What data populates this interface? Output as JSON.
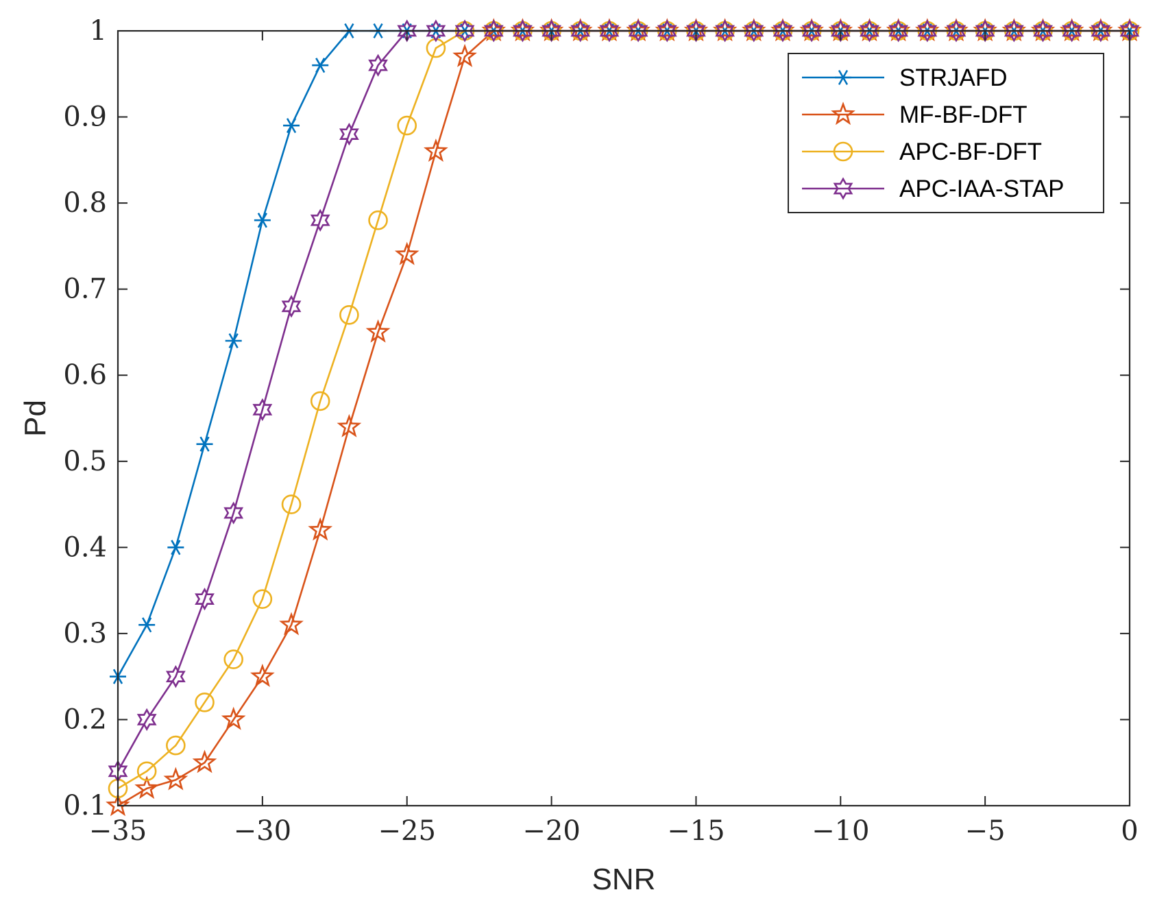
{
  "chart_data": {
    "type": "line",
    "title": "",
    "xlabel": "SNR",
    "ylabel": "Pd",
    "xlim": [
      -35,
      0
    ],
    "ylim": [
      0.1,
      1
    ],
    "grid": false,
    "legend_position": "top-right",
    "x": [
      -35,
      -34,
      -33,
      -32,
      -31,
      -30,
      -29,
      -28,
      -27,
      -26,
      -25,
      -24,
      -23,
      -22,
      -21,
      -20,
      -19,
      -18,
      -17,
      -16,
      -15,
      -14,
      -13,
      -12,
      -11,
      -10,
      -9,
      -8,
      -7,
      -6,
      -5,
      -4,
      -3,
      -2,
      -1,
      0
    ],
    "x_ticks": [
      -35,
      -30,
      -25,
      -20,
      -15,
      -10,
      -5,
      0
    ],
    "x_tick_labels": [
      "−35",
      "−30",
      "−25",
      "−20",
      "−15",
      "−10",
      "−5",
      "0"
    ],
    "y_ticks": [
      0.1,
      0.2,
      0.3,
      0.4,
      0.5,
      0.6,
      0.7,
      0.8,
      0.9,
      1
    ],
    "y_tick_labels": [
      "0.1",
      "0.2",
      "0.3",
      "0.4",
      "0.5",
      "0.6",
      "0.7",
      "0.8",
      "0.9",
      "1"
    ],
    "series": [
      {
        "name": "STRJAFD",
        "color": "#0072BD",
        "marker": "asterisk",
        "values": [
          0.25,
          0.31,
          0.4,
          0.52,
          0.64,
          0.78,
          0.89,
          0.96,
          1,
          1,
          1,
          1,
          1,
          1,
          1,
          1,
          1,
          1,
          1,
          1,
          1,
          1,
          1,
          1,
          1,
          1,
          1,
          1,
          1,
          1,
          1,
          1,
          1,
          1,
          1,
          1
        ]
      },
      {
        "name": "MF-BF-DFT",
        "color": "#D95319",
        "marker": "pentagram",
        "values": [
          0.1,
          0.12,
          0.13,
          0.15,
          0.2,
          0.25,
          0.31,
          0.42,
          0.54,
          0.65,
          0.74,
          0.86,
          0.97,
          1,
          1,
          1,
          1,
          1,
          1,
          1,
          1,
          1,
          1,
          1,
          1,
          1,
          1,
          1,
          1,
          1,
          1,
          1,
          1,
          1,
          1,
          1
        ]
      },
      {
        "name": "APC-BF-DFT",
        "color": "#EDB120",
        "marker": "circle",
        "values": [
          0.12,
          0.14,
          0.17,
          0.22,
          0.27,
          0.34,
          0.45,
          0.57,
          0.67,
          0.78,
          0.89,
          0.98,
          1,
          1,
          1,
          1,
          1,
          1,
          1,
          1,
          1,
          1,
          1,
          1,
          1,
          1,
          1,
          1,
          1,
          1,
          1,
          1,
          1,
          1,
          1,
          1
        ]
      },
      {
        "name": "APC-IAA-STAP",
        "color": "#7E2F8E",
        "marker": "hexagram",
        "values": [
          0.14,
          0.2,
          0.25,
          0.34,
          0.44,
          0.56,
          0.68,
          0.78,
          0.88,
          0.96,
          1,
          1,
          1,
          1,
          1,
          1,
          1,
          1,
          1,
          1,
          1,
          1,
          1,
          1,
          1,
          1,
          1,
          1,
          1,
          1,
          1,
          1,
          1,
          1,
          1,
          1
        ]
      }
    ]
  }
}
